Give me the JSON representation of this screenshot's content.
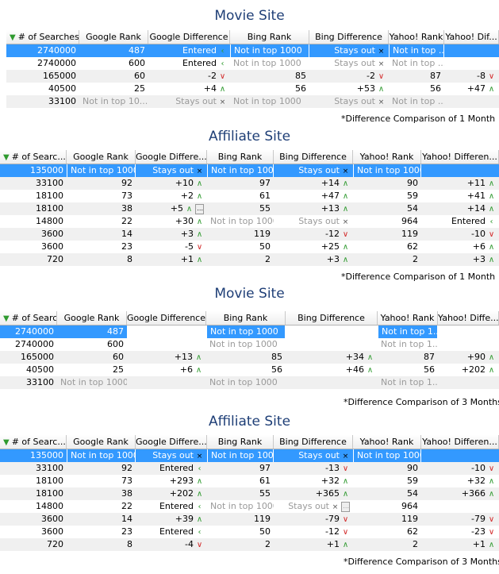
{
  "sections": [
    {
      "title": "Movie Site",
      "note": "*Difference Comparison of 1 Month",
      "headers": [
        "# of Searches",
        "Google Rank",
        "Google Difference",
        "Bing Rank",
        "Bing Difference",
        "Yahoo! Rank",
        "Yahoo! Dif..."
      ],
      "rows": [
        [
          "2740000",
          "487",
          "Entered|left",
          "Not in top 1000",
          "Stays out|x",
          "Not in top ...",
          ""
        ],
        [
          "2740000",
          "600",
          "Entered|left",
          "Not in top 1000",
          "Stays out|x",
          "Not in top ...",
          ""
        ],
        [
          "165000",
          "60",
          "-2|down",
          "85",
          "-2|down",
          "87",
          "-8|down"
        ],
        [
          "40500",
          "25",
          "+4|up",
          "56",
          "+53|up",
          "56",
          "+47|up"
        ],
        [
          "33100",
          "Not in top 10...",
          "Stays out|x",
          "Not in top 1000",
          "Stays out|x",
          "Not in top ...",
          ""
        ]
      ]
    },
    {
      "title": "Affiliate Site",
      "note": "*Difference Comparison of 1 Month",
      "headers": [
        "# of Searc...",
        "Google Rank",
        "Google Differe...",
        "Bing Rank",
        "Bing Difference",
        "Yahoo! Rank",
        "Yahoo! Differen..."
      ],
      "rows": [
        [
          "135000",
          "Not in top 1000",
          "Stays out|x",
          "Not in top 1000",
          "Stays out|x",
          "Not in top 1000",
          ""
        ],
        [
          "33100",
          "92",
          "+10|up",
          "97",
          "+14|up",
          "90",
          "+11|up"
        ],
        [
          "18100",
          "73",
          "+2|up",
          "61",
          "+47|up",
          "59",
          "+41|up"
        ],
        [
          "18100",
          "38",
          "+5|up|ell",
          "55",
          "+13|up",
          "54",
          "+14|up"
        ],
        [
          "14800",
          "22",
          "+30|up",
          "Not in top 1000",
          "Stays out|x",
          "964",
          "Entered|left"
        ],
        [
          "3600",
          "14",
          "+3|up",
          "119",
          "-12|down",
          "119",
          "-10|down"
        ],
        [
          "3600",
          "23",
          "-5|down",
          "50",
          "+25|up",
          "62",
          "+6|up"
        ],
        [
          "720",
          "8",
          "+1|up",
          "2",
          "+3|up",
          "2",
          "+3|up"
        ]
      ]
    },
    {
      "title": "Movie Site",
      "note": "*Difference Comparison of 3 Months",
      "headers": [
        "# of Searches",
        "Google Rank",
        "Google Difference",
        "Bing Rank",
        "Bing Difference",
        "Yahoo! Rank",
        "Yahoo! Diffe..."
      ],
      "rows": [
        [
          "2740000",
          "487",
          "",
          "Not in top 1000",
          "",
          "Not in top 1...",
          ""
        ],
        [
          "2740000",
          "600",
          "",
          "Not in top 1000",
          "",
          "Not in top 1...",
          ""
        ],
        [
          "165000",
          "60",
          "+13|up",
          "85",
          "+34|up",
          "87",
          "+90|up"
        ],
        [
          "40500",
          "25",
          "+6|up",
          "56",
          "+46|up",
          "56",
          "+202|up"
        ],
        [
          "33100",
          "Not in top 1000",
          "",
          "Not in top 1000",
          "",
          "Not in top 1...",
          ""
        ]
      ]
    },
    {
      "title": "Affiliate Site",
      "note": "*Difference Comparison of 3 Months",
      "headers": [
        "# of Searc...",
        "Google Rank",
        "Google Differe...",
        "Bing Rank",
        "Bing Difference",
        "Yahoo! Rank",
        "Yahoo! Differen..."
      ],
      "rows": [
        [
          "135000",
          "Not in top 1000",
          "Stays out|x",
          "Not in top 1000",
          "Stays out|x",
          "Not in top 1000",
          ""
        ],
        [
          "33100",
          "92",
          "Entered|left",
          "97",
          "-13|down",
          "90",
          "-10|down"
        ],
        [
          "18100",
          "73",
          "+293|up",
          "61",
          "+32|up",
          "59",
          "+32|up"
        ],
        [
          "18100",
          "38",
          "+202|up",
          "55",
          "+365|up",
          "54",
          "+366|up"
        ],
        [
          "14800",
          "22",
          "Entered|left",
          "Not in top 1000",
          "Stays out|x|ell",
          "964",
          ""
        ],
        [
          "3600",
          "14",
          "+39|up",
          "119",
          "-79|down",
          "119",
          "-79|down"
        ],
        [
          "3600",
          "23",
          "Entered|left",
          "50",
          "-12|down",
          "62",
          "-23|down"
        ],
        [
          "720",
          "8",
          "-4|down",
          "2",
          "+1|up",
          "2",
          "+1|up"
        ]
      ]
    }
  ]
}
